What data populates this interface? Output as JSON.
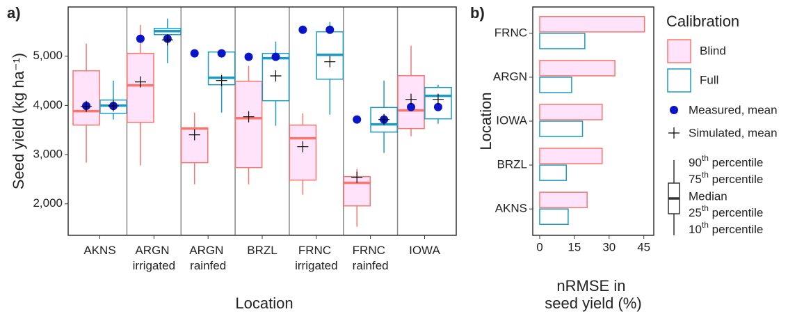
{
  "chart_data": [
    {
      "type": "box",
      "panel_label": "a)",
      "y_label": "Seed yield (kg ha⁻¹)",
      "x_label": "Location",
      "categories": [
        "AKNS",
        "ARGN irrigated",
        "ARGN rainfed",
        "BRZL",
        "FRNC irrigated",
        "FRNC rainfed",
        "IOWA"
      ],
      "ylim": [
        1360,
        6000
      ],
      "yticks": [
        {
          "value": 2000,
          "label": "2,000"
        },
        {
          "value": 3000,
          "label": "3,000"
        },
        {
          "value": 4000,
          "label": "4,000"
        },
        {
          "value": 5000,
          "label": "5,000"
        }
      ],
      "measured_color": "#0a14c8",
      "simulated_color": "#000000",
      "series": [
        {
          "name": "Blind",
          "color": "#f8766d",
          "fill": "#ffe3fa",
          "whislo": [
            2836,
            2779,
            2397,
            2397,
            2185,
            1535,
            3373
          ],
          "q1": [
            3600,
            3656,
            2836,
            2737,
            2482,
            1958,
            3529
          ],
          "median": [
            3883,
            4406,
            3529,
            3741,
            3331,
            2426,
            3897
          ],
          "q3": [
            4703,
            5057,
            3543,
            4491,
            3600,
            2553,
            4604
          ],
          "whishi": [
            5255,
            5636,
            3854,
            4802,
            3840,
            2709,
            5212
          ],
          "mean_measured": [
            3990,
            5354,
            5057,
            4986,
            5537,
            3713,
            3967
          ],
          "mean_simulated": [
            3980,
            4477,
            3402,
            3769,
            3161,
            2539,
            4123
          ]
        },
        {
          "name": "Full",
          "color": "#1b9ac2",
          "fill": "#ffffff",
          "whislo": [
            3713,
            4859,
            3854,
            3586,
            3812,
            3034,
            3628
          ],
          "q1": [
            3840,
            5438,
            4420,
            4095,
            4533,
            3458,
            3727
          ],
          "median": [
            3996,
            5509,
            4562,
            4958,
            5028,
            3614,
            4194
          ],
          "q3": [
            4109,
            5566,
            5085,
            5057,
            5495,
            3958,
            4364
          ],
          "whishi": [
            4505,
            5764,
            5141,
            5297,
            5693,
            4505,
            4420
          ],
          "mean_measured": [
            3990,
            5354,
            5057,
            4986,
            5537,
            3713,
            3967
          ],
          "mean_simulated": [
            3990,
            5330,
            4505,
            4600,
            4887,
            3713,
            4123
          ]
        }
      ],
      "legend_title": "Calibration",
      "legend_measured": "Measured, mean",
      "legend_simulated": "Simulated, mean",
      "legend_box_key": [
        "90th percentile",
        "75th percentile",
        "Median",
        "25th percentile",
        "10th percentile"
      ]
    },
    {
      "type": "hbar",
      "panel_label": "b)",
      "y_label": "Location",
      "x_label": "nRMSE in seed yield (%)",
      "categories": [
        "FRNC",
        "ARGN",
        "IOWA",
        "BRZL",
        "AKNS"
      ],
      "xlim": [
        -3,
        49.3
      ],
      "xticks": [
        0,
        15,
        30,
        45
      ],
      "series": [
        {
          "name": "Blind",
          "color": "#f8766d",
          "fill": "#ffe3fa",
          "values": [
            45.3,
            32.5,
            27,
            27,
            20.5
          ]
        },
        {
          "name": "Full",
          "color": "#1b9ac2",
          "fill": "#ffffff",
          "values": [
            19.5,
            13.8,
            18.5,
            11.5,
            12.3
          ]
        }
      ]
    }
  ]
}
